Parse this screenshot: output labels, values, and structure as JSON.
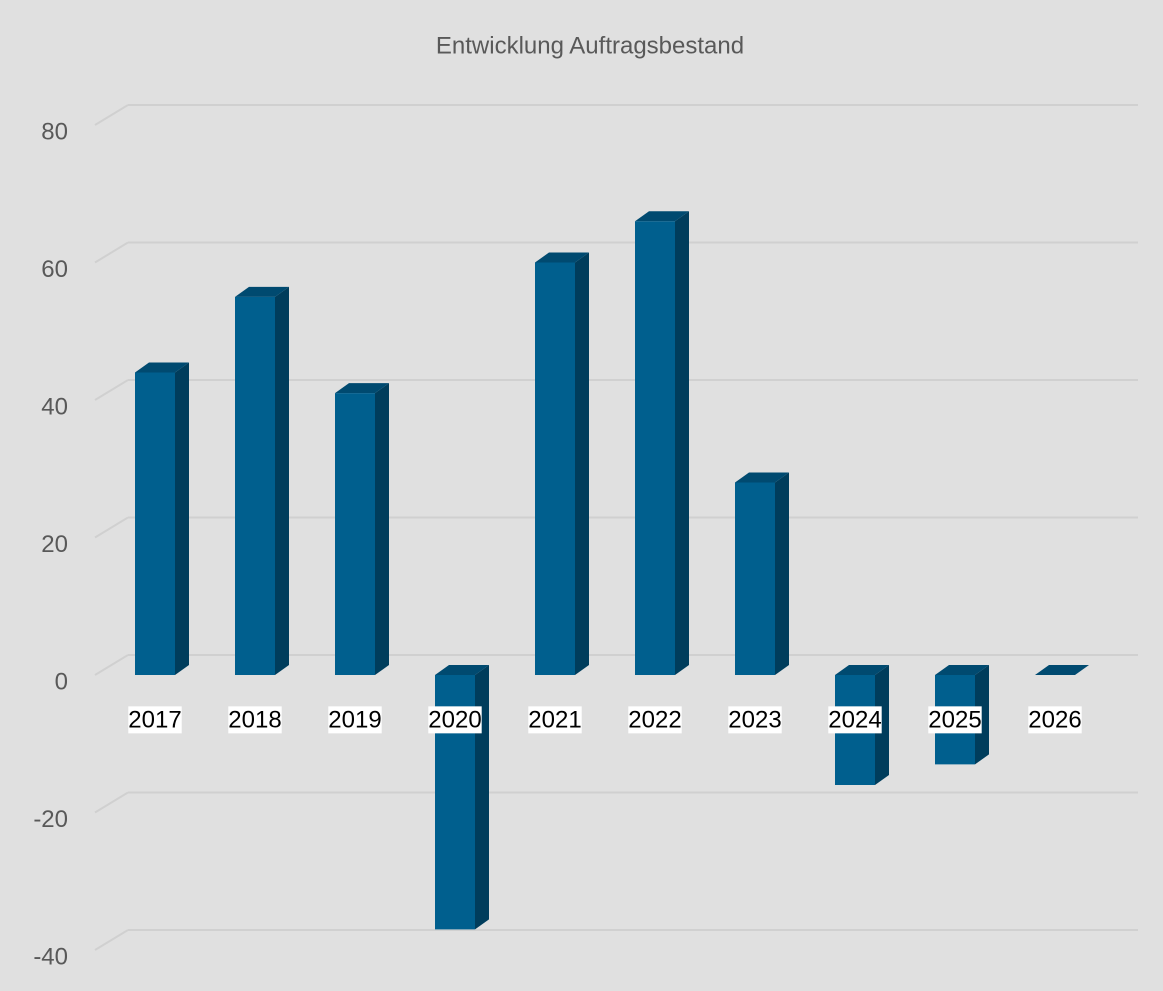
{
  "chart_data": {
    "type": "bar",
    "title": "Entwicklung Auftragsbestand",
    "categories": [
      "2017",
      "2018",
      "2019",
      "2020",
      "2021",
      "2022",
      "2023",
      "2024",
      "2025",
      "2026"
    ],
    "values": [
      44,
      55,
      41,
      -37,
      60,
      66,
      28,
      -16,
      -13,
      0
    ],
    "color": "#005f8e",
    "ylim": [
      -40,
      80
    ],
    "yticks": [
      -40,
      -20,
      0,
      20,
      40,
      60,
      80
    ],
    "grid": true
  }
}
